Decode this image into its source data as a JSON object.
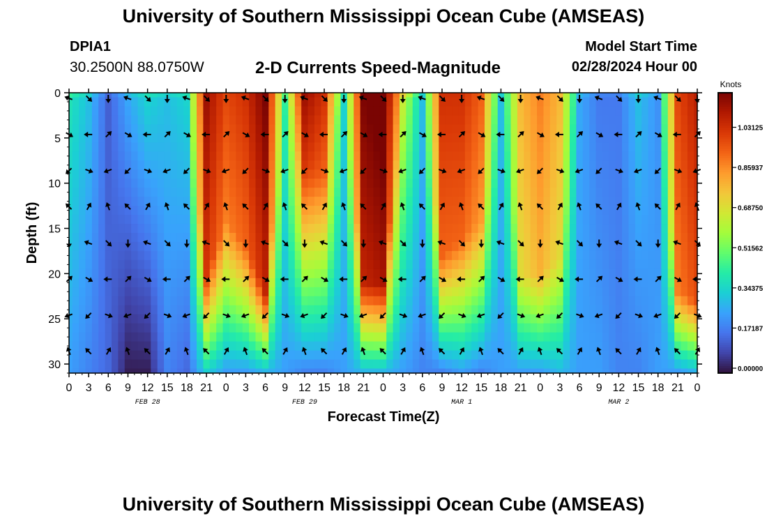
{
  "header": {
    "title": "University of Southern Mississippi Ocean Cube (AMSEAS)",
    "station": "DPIA1",
    "coords": "30.2500N  88.0750W",
    "subtitle": "2-D Currents Speed-Magnitude",
    "start_label": "Model Start Time",
    "start_value": "02/28/2024 Hour 00"
  },
  "footer": {
    "title": "University of Southern Mississippi Ocean Cube (AMSEAS)"
  },
  "colors": {
    "background": "#ffffff",
    "axis": "#000000",
    "arrow": "#000000"
  },
  "chart_data": {
    "type": "heatmap",
    "title": "2-D Currents Speed-Magnitude",
    "xlabel": "Forecast Time(Z)",
    "ylabel": "Depth (ft)",
    "units": "Knots",
    "x_ticks": [
      "0",
      "3",
      "6",
      "9",
      "12",
      "15",
      "18",
      "21",
      "0",
      "3",
      "6",
      "9",
      "12",
      "15",
      "18",
      "21",
      "0",
      "3",
      "6",
      "9",
      "12",
      "15",
      "18",
      "21",
      "0",
      "3",
      "6",
      "9",
      "12",
      "15",
      "18",
      "21",
      "0"
    ],
    "x_range_hours": [
      0,
      96
    ],
    "date_labels": [
      {
        "text": "FEB 28",
        "hour": 12
      },
      {
        "text": "FEB 29",
        "hour": 36
      },
      {
        "text": "MAR 1",
        "hour": 60
      },
      {
        "text": "MAR 2",
        "hour": 84
      }
    ],
    "y_ticks": [
      0,
      5,
      10,
      15,
      20,
      25,
      30
    ],
    "y_range_ft": [
      0,
      31
    ],
    "colorbar": {
      "label": "Knots",
      "range": [
        0,
        1.2
      ],
      "ticks": [
        "0.00000",
        "0.17187",
        "0.34375",
        "0.51562",
        "0.68750",
        "0.85937",
        "1.03125"
      ],
      "tick_values": [
        0.0,
        0.17187,
        0.34375,
        0.51562,
        0.6875,
        0.85937,
        1.03125
      ],
      "stops": [
        "#30123b",
        "#4145ab",
        "#4675ed",
        "#39a2fc",
        "#1bcfd4",
        "#24eca6",
        "#61fc6c",
        "#a4fc3b",
        "#d1e834",
        "#f3c63a",
        "#fe9b2d",
        "#f36315",
        "#d93806",
        "#b11901",
        "#7a0403"
      ]
    },
    "arrow_hours": [
      0,
      3,
      6,
      9,
      12,
      15,
      18,
      21,
      24,
      27,
      30,
      33,
      36,
      39,
      42,
      45,
      48,
      51,
      54,
      57,
      60,
      63,
      66,
      69,
      72,
      75,
      78,
      81,
      84,
      87,
      90,
      93,
      96
    ],
    "arrow_depths_ft": [
      0,
      4,
      8,
      12,
      16,
      20,
      24,
      28
    ],
    "profile_hours": [
      0,
      3,
      6,
      9,
      12,
      15,
      18,
      21,
      24,
      27,
      30,
      33,
      36,
      39,
      42,
      45,
      48,
      51,
      54,
      57,
      60,
      63,
      66,
      69,
      72,
      75,
      78,
      81,
      84,
      87,
      90,
      93,
      96
    ],
    "speed_surface_knots": [
      0.45,
      0.35,
      0.15,
      0.3,
      0.4,
      0.35,
      0.4,
      1.15,
      1.0,
      1.05,
      1.2,
      0.5,
      1.15,
      1.05,
      0.4,
      1.2,
      1.25,
      0.75,
      0.35,
      1.05,
      1.05,
      0.95,
      0.35,
      0.8,
      0.9,
      0.8,
      0.3,
      0.2,
      0.2,
      0.35,
      0.25,
      1.0,
      1.1
    ],
    "speed_bottom_knots": [
      0.25,
      0.2,
      0.15,
      0.02,
      0.02,
      0.2,
      0.15,
      0.35,
      0.25,
      0.25,
      0.3,
      0.25,
      0.2,
      0.2,
      0.25,
      0.3,
      0.3,
      0.25,
      0.2,
      0.2,
      0.25,
      0.2,
      0.25,
      0.25,
      0.25,
      0.3,
      0.25,
      0.25,
      0.2,
      0.2,
      0.25,
      0.25,
      0.3
    ],
    "core_depth_ft": [
      0,
      0,
      0,
      0,
      0,
      0,
      0,
      20,
      14,
      17,
      22,
      0,
      8,
      9,
      0,
      21,
      21,
      0,
      0,
      18,
      16,
      14,
      0,
      20,
      20,
      18,
      0,
      0,
      0,
      0,
      0,
      22,
      23
    ]
  }
}
